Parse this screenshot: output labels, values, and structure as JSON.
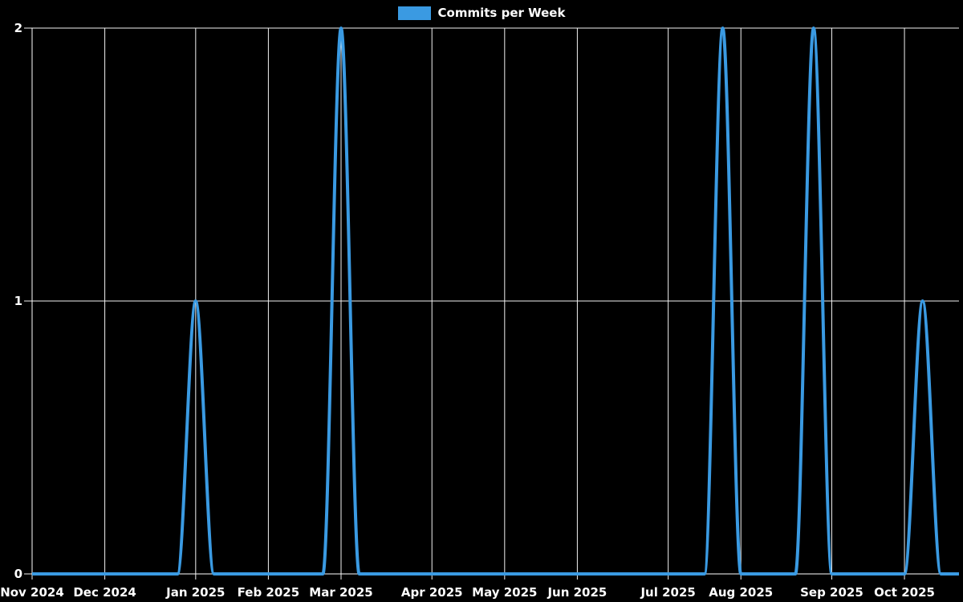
{
  "legend": {
    "label": "Commits per Week"
  },
  "colors": {
    "background": "#000000",
    "line": "#3A9AE2",
    "grid": "#F2F2F2",
    "axis": "#FFFFFF",
    "text": "#FFFFFF"
  },
  "chart_data": {
    "type": "line",
    "title": "",
    "xlabel": "",
    "ylabel": "",
    "legend_position": "top",
    "grid": true,
    "x_unit": "week",
    "n_points": 52,
    "ylim": [
      0,
      2
    ],
    "y_ticks": [
      "0",
      "1",
      "2"
    ],
    "x_ticks": [
      {
        "week": 0,
        "label": "Nov 2024"
      },
      {
        "week": 4,
        "label": "Dec 2024"
      },
      {
        "week": 9,
        "label": "Jan 2025"
      },
      {
        "week": 13,
        "label": "Feb 2025"
      },
      {
        "week": 17,
        "label": "Mar 2025"
      },
      {
        "week": 22,
        "label": "Apr 2025"
      },
      {
        "week": 26,
        "label": "May 2025"
      },
      {
        "week": 30,
        "label": "Jun 2025"
      },
      {
        "week": 35,
        "label": "Jul 2025"
      },
      {
        "week": 39,
        "label": "Aug 2025"
      },
      {
        "week": 44,
        "label": "Sep 2025"
      },
      {
        "week": 48,
        "label": "Oct 2025"
      }
    ],
    "series": [
      {
        "name": "Commits per Week",
        "values": [
          0,
          0,
          0,
          0,
          0,
          0,
          0,
          0,
          0,
          1,
          0,
          0,
          0,
          0,
          0,
          0,
          0,
          2,
          0,
          0,
          0,
          0,
          0,
          0,
          0,
          0,
          0,
          0,
          0,
          0,
          0,
          0,
          0,
          0,
          0,
          0,
          0,
          0,
          2,
          0,
          0,
          0,
          0,
          2,
          0,
          0,
          0,
          0,
          0,
          1,
          0,
          0
        ]
      }
    ],
    "nonzero_points": [
      {
        "week": 9,
        "value": 1
      },
      {
        "week": 17,
        "value": 2
      },
      {
        "week": 38,
        "value": 2
      },
      {
        "week": 43,
        "value": 2
      },
      {
        "week": 49,
        "value": 1
      }
    ]
  }
}
